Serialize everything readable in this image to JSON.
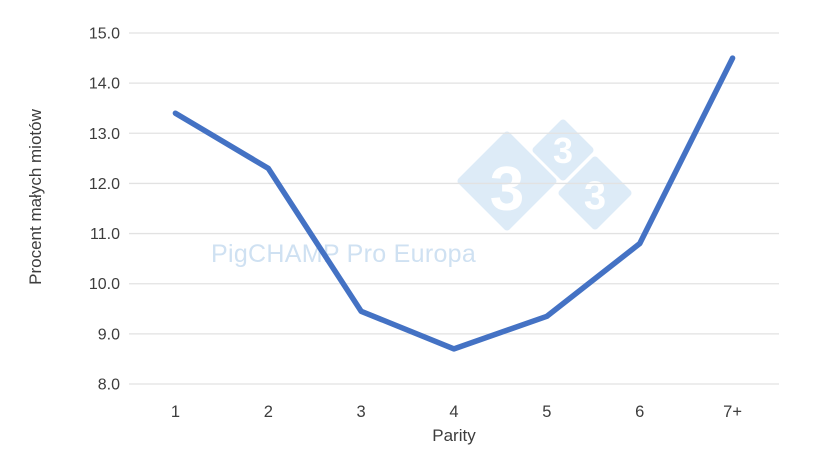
{
  "chart_data": {
    "type": "line",
    "categories": [
      "1",
      "2",
      "3",
      "4",
      "5",
      "6",
      "7+"
    ],
    "series": [
      {
        "name": "Procent małych miotów",
        "values": [
          13.4,
          12.3,
          9.45,
          8.7,
          9.35,
          10.8,
          14.5
        ]
      }
    ],
    "title": "",
    "xlabel": "Parity",
    "ylabel": "Procent małych miotów",
    "ylim": [
      8.0,
      15.0
    ],
    "y_tick_labels": [
      "8.0",
      "9.0",
      "10.0",
      "11.0",
      "12.0",
      "13.0",
      "14.0",
      "15.0"
    ],
    "grid": "horizontal",
    "legend_position": "none",
    "line_color": "#4472c4",
    "grid_color": "#e2e2e2",
    "tick_text_color": "#3d3d3d"
  },
  "watermark": {
    "text": "PigCHAMP Pro Europa",
    "text_color": "#cfe1f2",
    "logo_digit": "3",
    "logo_fill": "#ddebf7",
    "logo_digit_color": "#ffffff"
  }
}
